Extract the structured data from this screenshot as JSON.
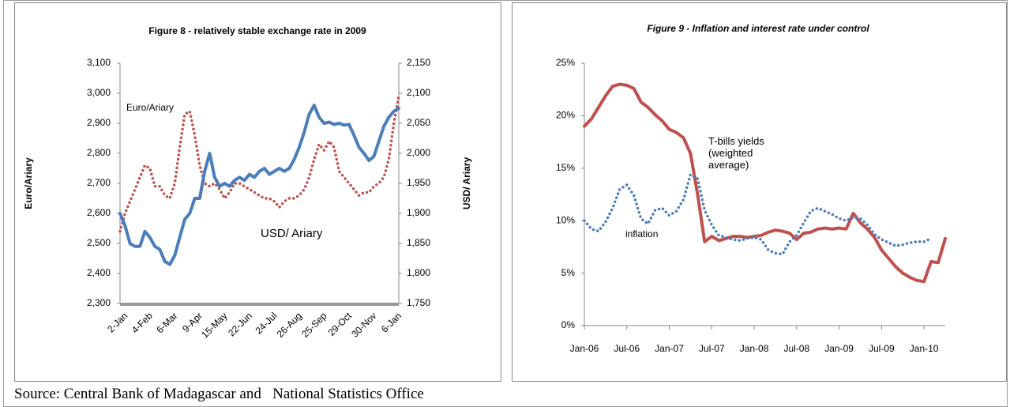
{
  "chart_data": [
    {
      "type": "line",
      "title": "Figure 8 - relatively stable exchange rate in 2009",
      "ylabel": "Euro/Ariary",
      "y2label": "USD/ Ariary",
      "grid": false,
      "categories": [
        "2-Jan",
        null,
        null,
        null,
        null,
        "4-Feb",
        null,
        null,
        null,
        null,
        "6-Mar",
        null,
        null,
        null,
        null,
        "9-Apr",
        null,
        null,
        null,
        null,
        "15-May",
        null,
        null,
        null,
        null,
        "22-Jun",
        null,
        null,
        null,
        null,
        "24-Jul",
        null,
        null,
        null,
        null,
        "26-Aug",
        null,
        null,
        null,
        null,
        "25-Sep",
        null,
        null,
        null,
        null,
        "29-Oct",
        null,
        null,
        null,
        null,
        "30-Nov",
        null,
        null,
        null,
        null,
        "6-Jan",
        null
      ],
      "ylim": [
        2300,
        3100
      ],
      "yticks": [
        {
          "value": 2300,
          "label": "2,300"
        },
        {
          "value": 2400,
          "label": "2,400"
        },
        {
          "value": 2500,
          "label": "2,500"
        },
        {
          "value": 2600,
          "label": "2,600"
        },
        {
          "value": 2700,
          "label": "2,700"
        },
        {
          "value": 2800,
          "label": "2,800"
        },
        {
          "value": 2900,
          "label": "2,900"
        },
        {
          "value": 3000,
          "label": "3,000"
        },
        {
          "value": 3100,
          "label": "3,100"
        }
      ],
      "y2lim": [
        1750,
        2150
      ],
      "y2ticks": [
        {
          "value": 1750,
          "label": "1,750"
        },
        {
          "value": 1800,
          "label": "1,800"
        },
        {
          "value": 1850,
          "label": "1,850"
        },
        {
          "value": 1900,
          "label": "1,900"
        },
        {
          "value": 1950,
          "label": "1,950"
        },
        {
          "value": 2000,
          "label": "2,000"
        },
        {
          "value": 2050,
          "label": "2,050"
        },
        {
          "value": 2100,
          "label": "2,100"
        },
        {
          "value": 2150,
          "label": "2,150"
        }
      ],
      "series": [
        {
          "name": "Euro/Ariary",
          "color": "#c0504d",
          "style": "dotted",
          "values": [
            2540,
            2600,
            2640,
            2680,
            2720,
            2760,
            2750,
            2690,
            2690,
            2660,
            2650,
            2700,
            2820,
            2930,
            2940,
            2860,
            2760,
            2700,
            2690,
            2700,
            2680,
            2650,
            2670,
            2700,
            2700,
            2690,
            2680,
            2670,
            2660,
            2650,
            2650,
            2640,
            2620,
            2640,
            2650,
            2650,
            2660,
            2680,
            2720,
            2780,
            2830,
            2810,
            2840,
            2820,
            2740,
            2720,
            2700,
            2680,
            2660,
            2670,
            2670,
            2690,
            2700,
            2720,
            2780,
            2900,
            2990
          ]
        },
        {
          "name": "USD/ Ariary",
          "color": "#4a7ebb",
          "style": "solid",
          "axis": "y2",
          "values": [
            1900,
            1880,
            1850,
            1845,
            1845,
            1870,
            1860,
            1845,
            1840,
            1820,
            1815,
            1830,
            1860,
            1890,
            1900,
            1925,
            1925,
            1970,
            2000,
            1960,
            1945,
            1950,
            1945,
            1955,
            1960,
            1955,
            1965,
            1960,
            1970,
            1975,
            1965,
            1970,
            1975,
            1970,
            1975,
            1990,
            2010,
            2035,
            2065,
            2080,
            2060,
            2050,
            2052,
            2048,
            2050,
            2047,
            2048,
            2030,
            2010,
            2000,
            1988,
            1995,
            2020,
            2045,
            2060,
            2070,
            2075
          ]
        }
      ]
    },
    {
      "type": "line",
      "title": "Figure 9 - Inflation and interest rate under control",
      "grid": false,
      "categories": [
        "Jan-06",
        null,
        null,
        null,
        null,
        null,
        "Jul-06",
        null,
        null,
        null,
        null,
        null,
        "Jan-07",
        null,
        null,
        null,
        null,
        null,
        "Jul-07",
        null,
        null,
        null,
        null,
        null,
        "Jan-08",
        null,
        null,
        null,
        null,
        null,
        "Jul-08",
        null,
        null,
        null,
        null,
        null,
        "Jan-09",
        null,
        null,
        null,
        null,
        null,
        "Jul-09",
        null,
        null,
        null,
        null,
        null,
        "Jan-10",
        null,
        null,
        null
      ],
      "ylim": [
        0,
        25
      ],
      "yticks": [
        {
          "value": 0,
          "label": "0%"
        },
        {
          "value": 5,
          "label": "5%"
        },
        {
          "value": 10,
          "label": "10%"
        },
        {
          "value": 15,
          "label": "15%"
        },
        {
          "value": 20,
          "label": "20%"
        },
        {
          "value": 25,
          "label": "25%"
        }
      ],
      "series": [
        {
          "name": "T-bills yields (weighted average)",
          "color": "#c0504d",
          "style": "solid",
          "values": [
            19.0,
            19.7,
            20.8,
            21.9,
            22.8,
            23.0,
            22.9,
            22.6,
            21.3,
            20.8,
            20.1,
            19.5,
            18.7,
            18.4,
            17.9,
            16.4,
            12.5,
            8.0,
            8.5,
            8.1,
            8.3,
            8.5,
            8.5,
            8.4,
            8.5,
            8.6,
            8.9,
            9.1,
            9.0,
            8.8,
            8.2,
            8.8,
            8.9,
            9.2,
            9.3,
            9.2,
            9.3,
            9.2,
            10.7,
            9.8,
            9.2,
            8.4,
            7.2,
            6.4,
            5.6,
            5.0,
            4.6,
            4.3,
            4.2,
            6.1,
            6.0,
            8.3
          ]
        },
        {
          "name": "inflation",
          "color": "#4a7ebb",
          "style": "dotted",
          "values": [
            10.0,
            9.2,
            9.0,
            9.9,
            11.2,
            13.0,
            13.4,
            12.4,
            10.2,
            9.7,
            11.0,
            11.2,
            10.5,
            10.9,
            12.0,
            14.4,
            14.0,
            11.0,
            9.6,
            8.6,
            8.4,
            8.2,
            8.1,
            8.3,
            8.4,
            8.2,
            7.2,
            6.9,
            6.8,
            8.0,
            8.6,
            9.8,
            10.9,
            11.2,
            10.9,
            10.6,
            10.2,
            10.0,
            10.3,
            10.2,
            9.6,
            8.7,
            8.2,
            7.9,
            7.6,
            7.7,
            7.9,
            8.0,
            8.0,
            8.3,
            null,
            null
          ]
        }
      ]
    }
  ],
  "source": "Source: Central Bank of Madagascar and   National Statistics Office"
}
